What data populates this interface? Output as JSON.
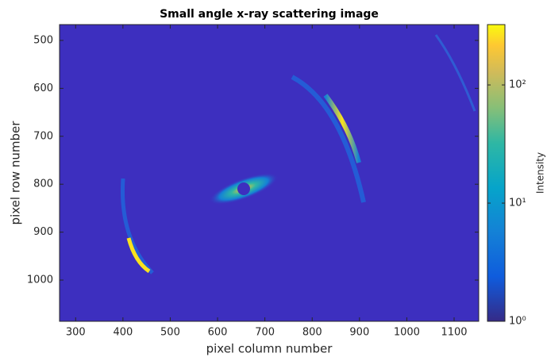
{
  "chart_data": {
    "type": "image",
    "title": "Small angle x-ray scattering image",
    "x_label": "pixel column number",
    "y_label": "pixel row number",
    "xlim": [
      266,
      1152
    ],
    "xticks": [
      300,
      400,
      500,
      600,
      700,
      800,
      900,
      1000,
      1100
    ],
    "ylim": [
      467,
      1086
    ],
    "yticks": [
      500,
      600,
      700,
      800,
      900,
      1000
    ],
    "y_reversed": true,
    "colorbar": {
      "label": "Intensity",
      "scale": "log",
      "lim": [
        1,
        324
      ],
      "colormap": "parula",
      "ticks": [
        {
          "value": 1,
          "label": "10⁰"
        },
        {
          "value": 10,
          "label": "10¹"
        },
        {
          "value": 100,
          "label": "10²"
        }
      ]
    },
    "grid": false
  }
}
